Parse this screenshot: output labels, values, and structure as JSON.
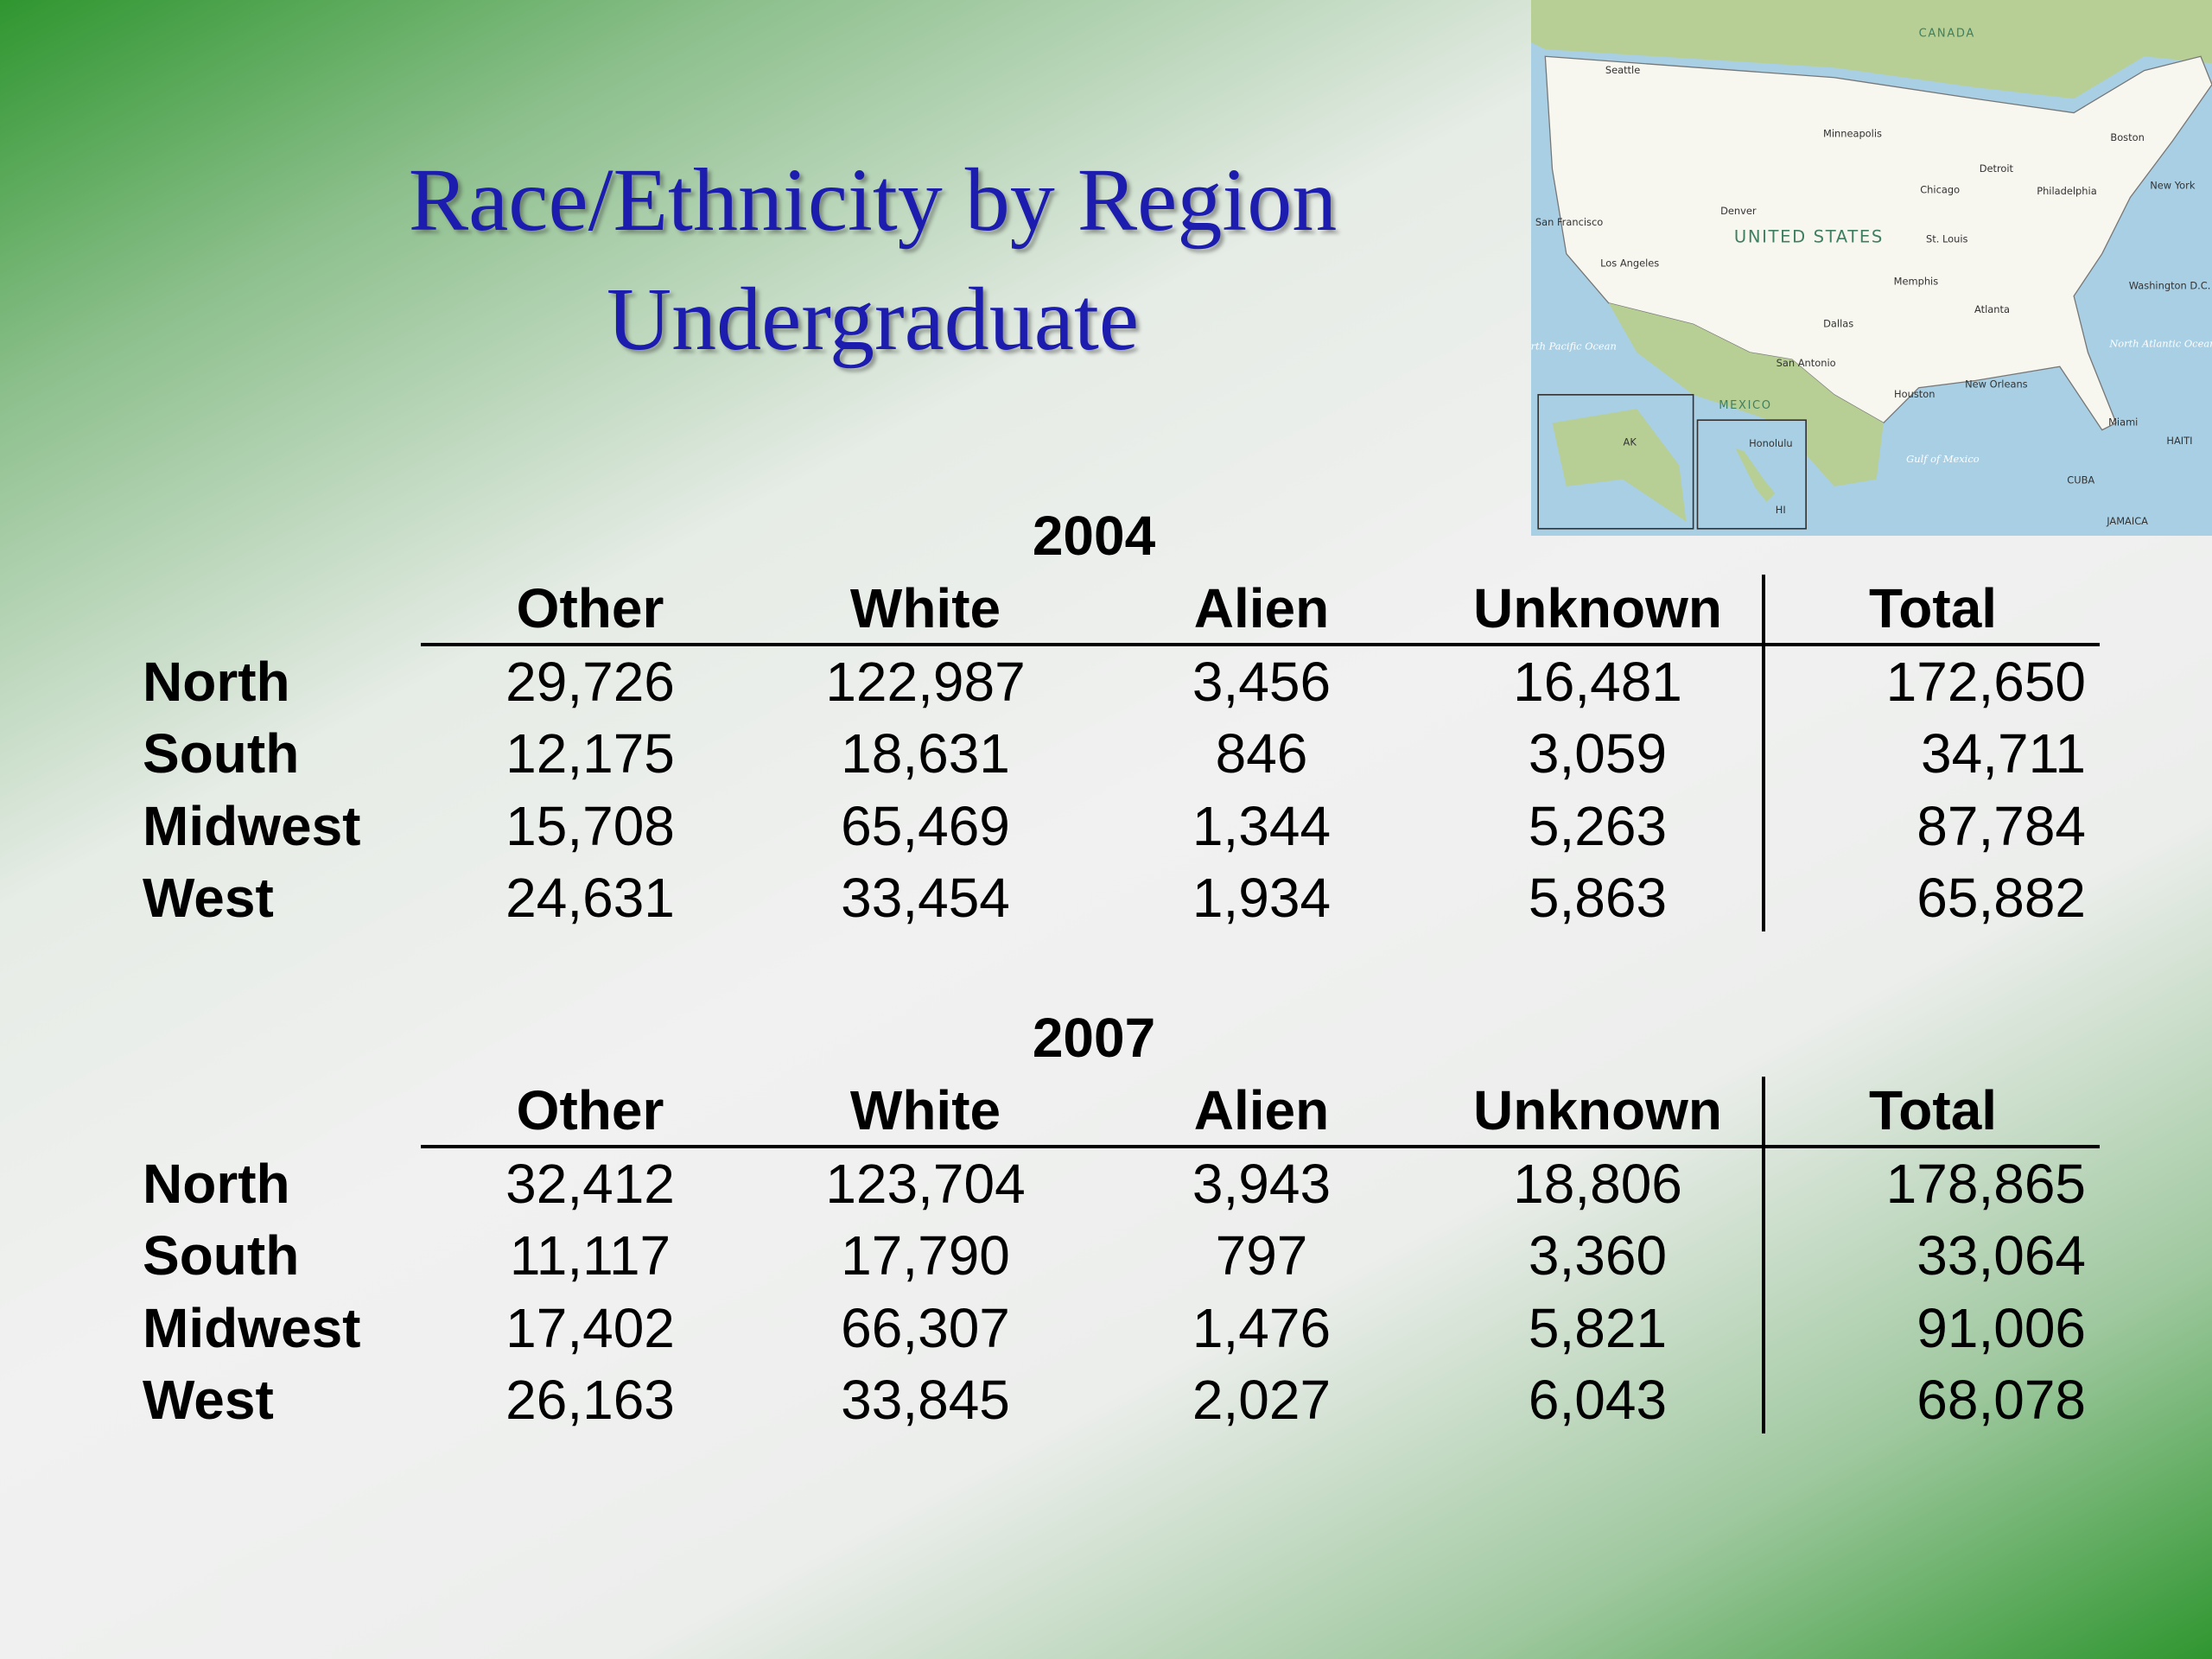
{
  "title": [
    "Race/Ethnicity by Region",
    "Undergraduate"
  ],
  "tables": [
    {
      "year": "2004",
      "columns": [
        "Other",
        "White",
        "Alien",
        "Unknown",
        "Total"
      ],
      "rows": [
        {
          "region": "North",
          "cells": [
            "29,726",
            "122,987",
            "3,456",
            "16,481",
            "172,650"
          ]
        },
        {
          "region": "South",
          "cells": [
            "12,175",
            "18,631",
            "846",
            "3,059",
            "34,711"
          ]
        },
        {
          "region": "Midwest",
          "cells": [
            "15,708",
            "65,469",
            "1,344",
            "5,263",
            "87,784"
          ]
        },
        {
          "region": "West",
          "cells": [
            "24,631",
            "33,454",
            "1,934",
            "5,863",
            "65,882"
          ]
        }
      ]
    },
    {
      "year": "2007",
      "columns": [
        "Other",
        "White",
        "Alien",
        "Unknown",
        "Total"
      ],
      "rows": [
        {
          "region": "North",
          "cells": [
            "32,412",
            "123,704",
            "3,943",
            "18,806",
            "178,865"
          ]
        },
        {
          "region": "South",
          "cells": [
            "11,117",
            "17,790",
            "797",
            "3,360",
            "33,064"
          ]
        },
        {
          "region": "Midwest",
          "cells": [
            "17,402",
            "66,307",
            "1,476",
            "5,821",
            "91,006"
          ]
        },
        {
          "region": "West",
          "cells": [
            "26,163",
            "33,845",
            "2,027",
            "6,043",
            "68,078"
          ]
        }
      ]
    }
  ],
  "map": {
    "labels": [
      "CANADA",
      "UNITED STATES",
      "MEXICO",
      "North Pacific Ocean",
      "North Atlantic Ocean",
      "Gulf of Mexico",
      "Seattle",
      "San Francisco",
      "Los Angeles",
      "Denver",
      "Chicago",
      "New York",
      "Boston",
      "Dallas",
      "Houston",
      "Miami",
      "Atlanta",
      "New Orleans",
      "Minneapolis",
      "Honolulu",
      "HAITI",
      "CUBA",
      "JAMAICA",
      "AK",
      "HI",
      "Washington D.C.",
      "St. Louis",
      "Memphis",
      "San Antonio",
      "Detroit",
      "Philadelphia"
    ]
  }
}
